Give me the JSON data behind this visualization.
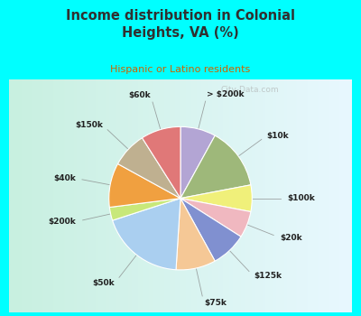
{
  "title": "Income distribution in Colonial\nHeights, VA (%)",
  "subtitle": "Hispanic or Latino residents",
  "watermark": "City-Data.com",
  "labels": [
    "> $200k",
    "$10k",
    "$100k",
    "$20k",
    "$125k",
    "$75k",
    "$50k",
    "$200k",
    "$40k",
    "$150k",
    "$60k"
  ],
  "values": [
    8,
    14,
    6,
    6,
    8,
    9,
    19,
    3,
    10,
    8,
    9
  ],
  "colors": [
    "#b3a5d4",
    "#9eb87a",
    "#f0f07a",
    "#f0b8c0",
    "#8090d0",
    "#f5c896",
    "#aacff0",
    "#c8e87a",
    "#f0a040",
    "#bfb090",
    "#e07878"
  ],
  "outer_bg": "#00ffff",
  "inner_bg_left": "#c8f0e0",
  "inner_bg_right": "#e8f8ff",
  "title_color": "#303030",
  "subtitle_color": "#cc6600",
  "label_color": "#202020",
  "watermark_color": "#aaaaaa",
  "start_angle": 90,
  "fig_width": 4.0,
  "fig_height": 3.5,
  "dpi": 100
}
